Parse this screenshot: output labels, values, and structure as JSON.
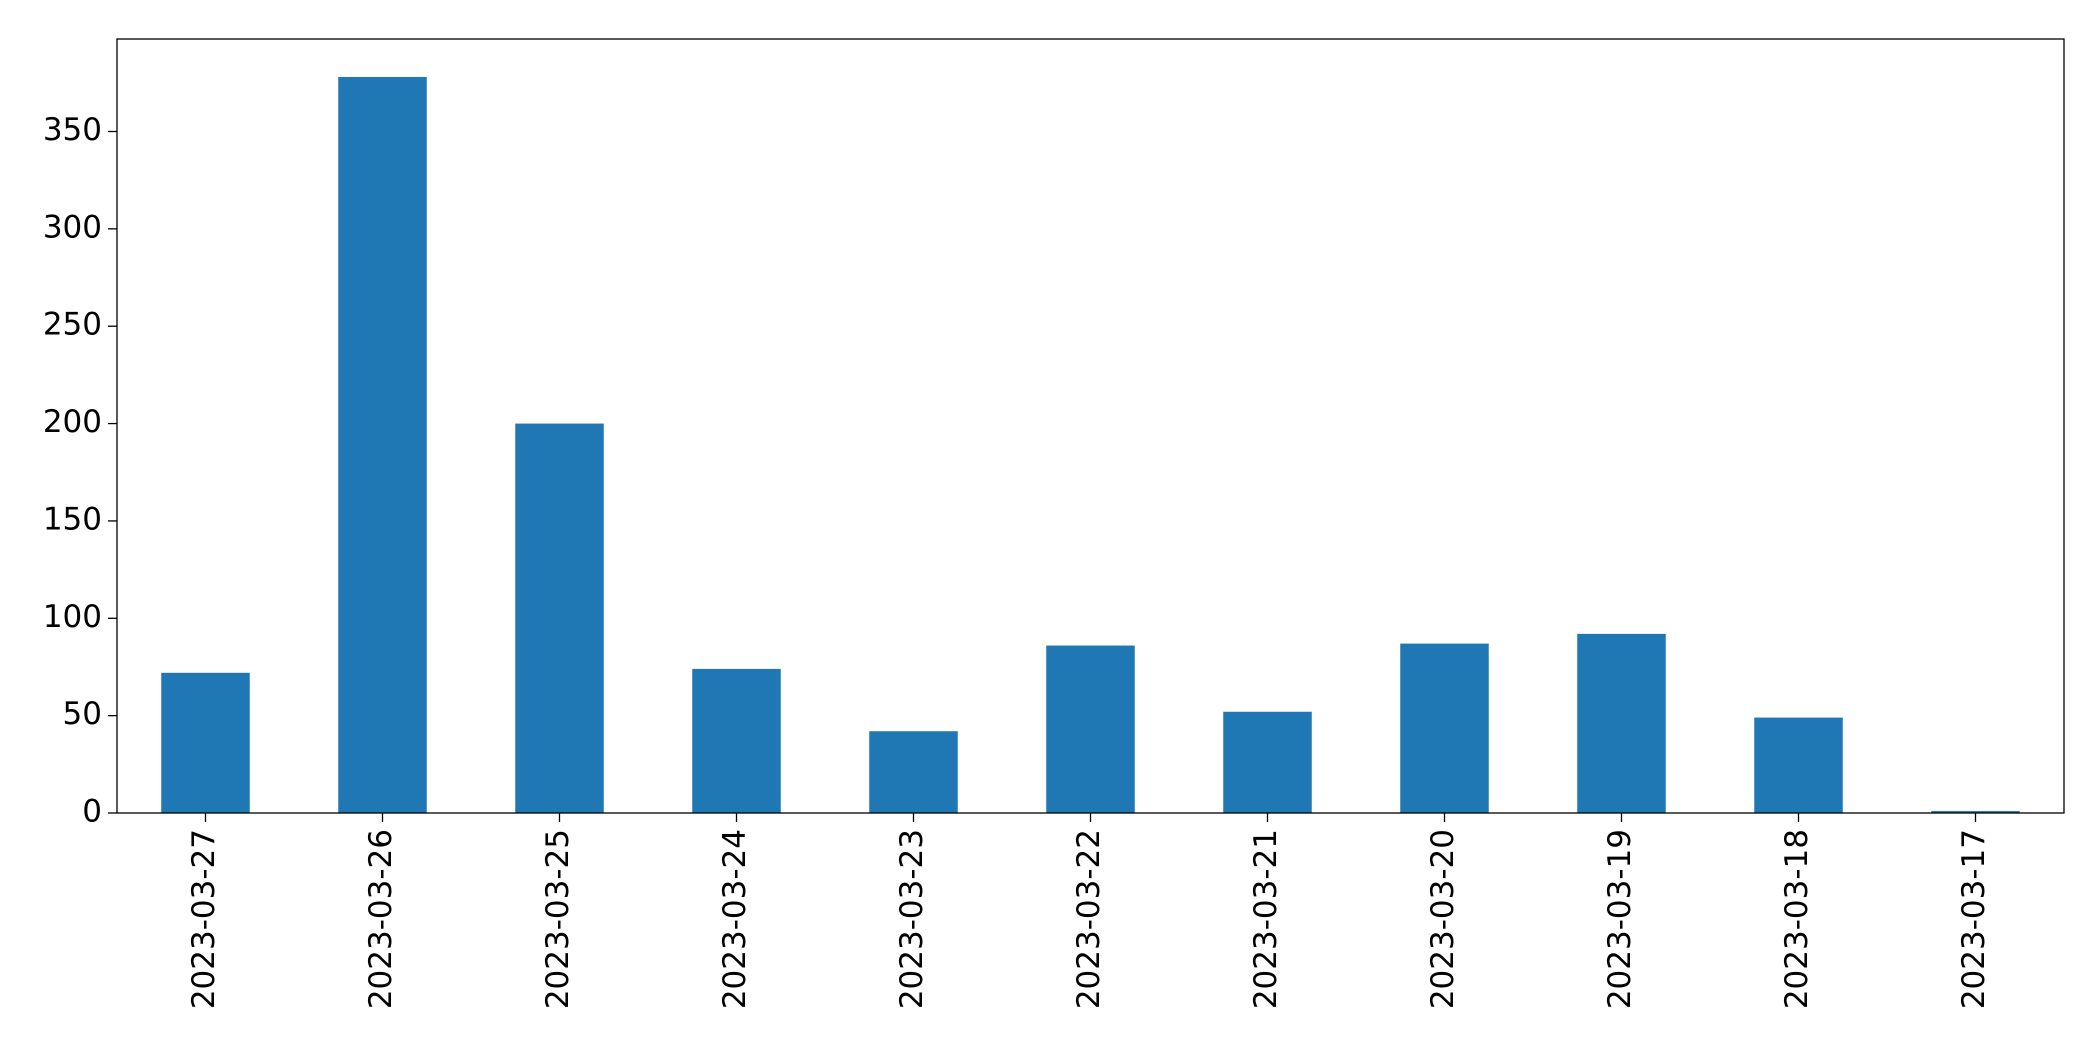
{
  "chart_data": {
    "type": "bar",
    "categories": [
      "2023-03-27",
      "2023-03-26",
      "2023-03-25",
      "2023-03-24",
      "2023-03-23",
      "2023-03-22",
      "2023-03-21",
      "2023-03-20",
      "2023-03-19",
      "2023-03-18",
      "2023-03-17"
    ],
    "values": [
      72,
      378,
      200,
      74,
      42,
      86,
      52,
      87,
      92,
      49,
      1
    ],
    "color": "#1f77b4",
    "ylim": [
      0,
      397.5
    ],
    "yticks": [
      0,
      50,
      100,
      150,
      200,
      250,
      300,
      350
    ],
    "grid": false
  }
}
